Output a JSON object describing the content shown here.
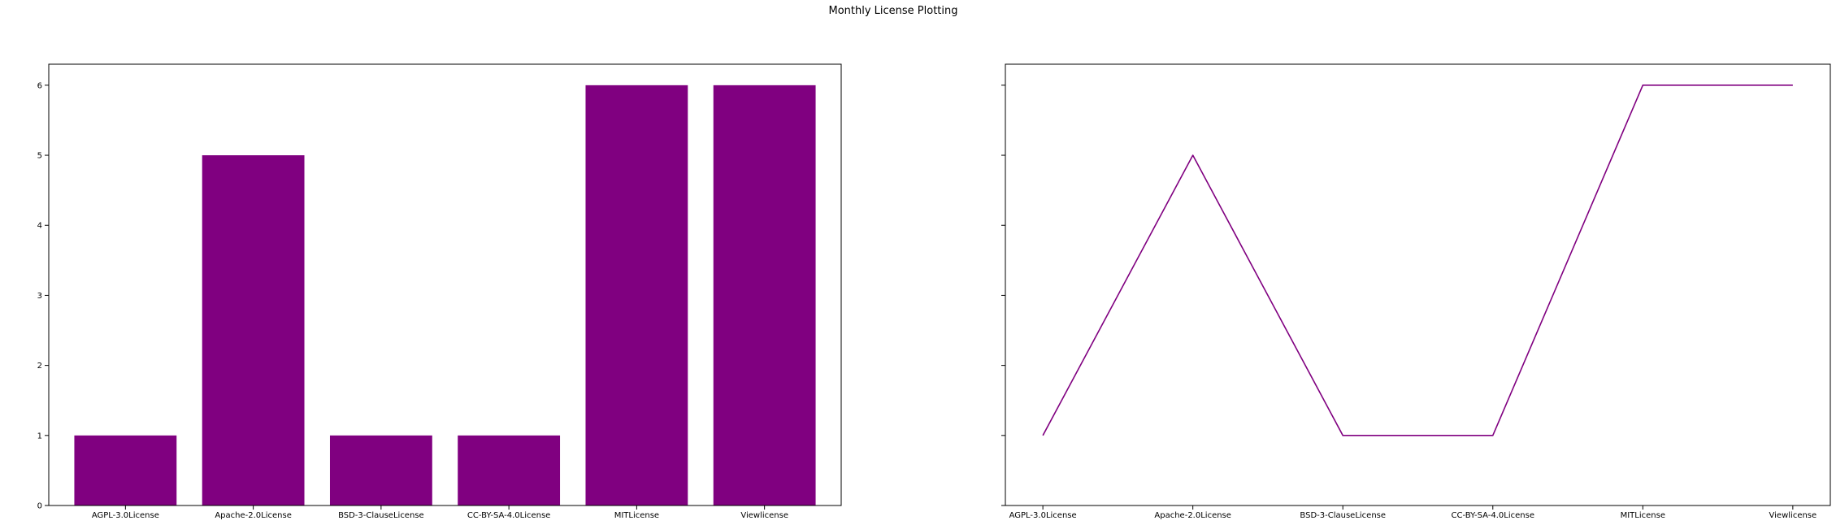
{
  "figure": {
    "suptitle": "Monthly License Plotting"
  },
  "colors": {
    "series": "#800080",
    "axes": "#000000",
    "background": "#ffffff"
  },
  "chart_data": [
    {
      "type": "bar",
      "title": "",
      "xlabel": "",
      "ylabel": "",
      "categories": [
        "AGPL-3.0License",
        "Apache-2.0License",
        "BSD-3-ClauseLicense",
        "CC-BY-SA-4.0License",
        "MITLicense",
        "Viewlicense"
      ],
      "values": [
        1,
        5,
        1,
        1,
        6,
        6
      ],
      "ylim": [
        0,
        6.3
      ],
      "yticks": [
        0,
        1,
        2,
        3,
        4,
        5,
        6
      ],
      "grid": false,
      "color": "#800080"
    },
    {
      "type": "line",
      "title": "",
      "xlabel": "",
      "ylabel": "",
      "categories": [
        "AGPL-3.0License",
        "Apache-2.0License",
        "BSD-3-ClauseLicense",
        "CC-BY-SA-4.0License",
        "MITLicense",
        "Viewlicense"
      ],
      "values": [
        1,
        5,
        1,
        1,
        6,
        6
      ],
      "ylim": [
        0,
        6.3
      ],
      "yticks": [
        0,
        1,
        2,
        3,
        4,
        5,
        6
      ],
      "sharey": true,
      "grid": false,
      "color": "#800080"
    }
  ]
}
